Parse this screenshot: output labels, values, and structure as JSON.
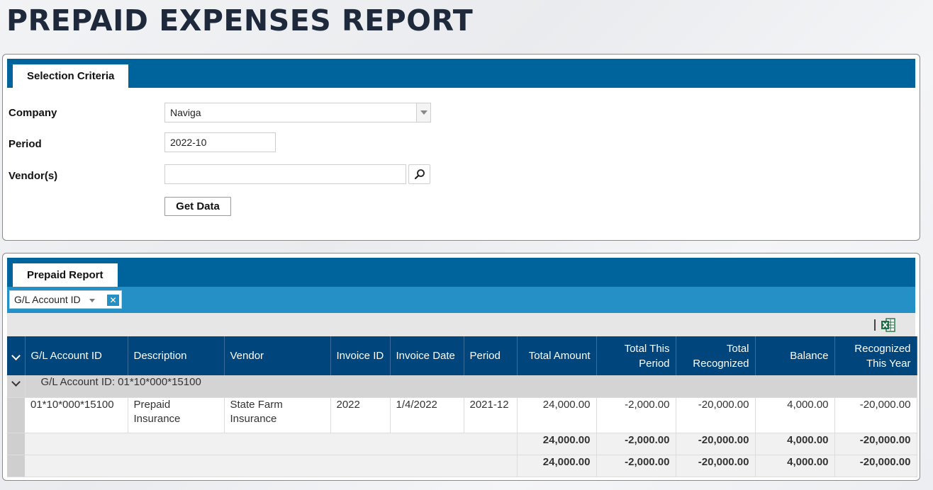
{
  "page": {
    "title": "PREPAID EXPENSES REPORT"
  },
  "criteria": {
    "tab_label": "Selection Criteria",
    "company": {
      "label": "Company",
      "value": "Naviga"
    },
    "period": {
      "label": "Period",
      "value": "2022-10"
    },
    "vendors": {
      "label": "Vendor(s)",
      "value": ""
    },
    "get_data_label": "Get Data"
  },
  "report": {
    "tab_label": "Prepaid Report",
    "group_chip": "G/L Account ID",
    "columns": {
      "gl_account": "G/L Account ID",
      "description": "Description",
      "vendor": "Vendor",
      "invoice_id": "Invoice ID",
      "invoice_date": "Invoice Date",
      "period": "Period",
      "total_amount": "Total Amount",
      "total_this_period": "Total This Period",
      "total_recognized": "Total Recognized",
      "balance": "Balance",
      "recognized_this_year": "Recognized This Year"
    },
    "group_label": "G/L Account ID: 01*10*000*15100",
    "row": {
      "gl_account": "01*10*000*15100",
      "description": "Prepaid Insurance",
      "vendor": "State Farm Insurance",
      "invoice_id": "2022",
      "invoice_date": "1/4/2022",
      "period": "2021-12",
      "total_amount": "24,000.00",
      "total_this_period": "-2,000.00",
      "total_recognized": "-20,000.00",
      "balance": "4,000.00",
      "recognized_this_year": "-20,000.00"
    },
    "group_total": {
      "total_amount": "24,000.00",
      "total_this_period": "-2,000.00",
      "total_recognized": "-20,000.00",
      "balance": "4,000.00",
      "recognized_this_year": "-20,000.00"
    },
    "grand_total": {
      "total_amount": "24,000.00",
      "total_this_period": "-2,000.00",
      "total_recognized": "-20,000.00",
      "balance": "4,000.00",
      "recognized_this_year": "-20,000.00"
    }
  },
  "icons": {
    "dropdown": "chevron-down-icon",
    "vendor_search": "search-icon",
    "chip_remove": "close-icon",
    "export": "excel-icon",
    "expand_all": "chevron-down-icon",
    "group_toggle": "chevron-down-icon"
  },
  "colors": {
    "tab_bar": "#00649c",
    "group_bar": "#2590c6",
    "grid_header": "#00457c",
    "link": "#1f7fb8",
    "excel_green": "#1d7044"
  }
}
